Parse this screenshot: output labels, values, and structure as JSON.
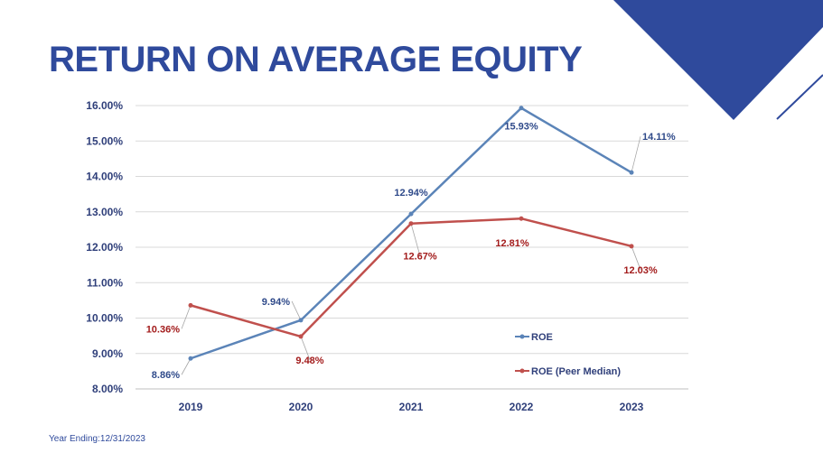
{
  "slide": {
    "title": "RETURN ON AVERAGE EQUITY",
    "footnote": "Year Ending:12/31/2023",
    "colors": {
      "title": "#2f4a9c",
      "accent_triangle": "#2f4a9c"
    }
  },
  "chart_data": {
    "type": "line",
    "title": "",
    "xlabel": "",
    "ylabel": "",
    "categories": [
      "2019",
      "2020",
      "2021",
      "2022",
      "2023"
    ],
    "ylim": [
      8,
      16
    ],
    "yticks": [
      8,
      9,
      10,
      11,
      12,
      13,
      14,
      15,
      16
    ],
    "ytick_labels": [
      "8.00%",
      "9.00%",
      "10.00%",
      "11.00%",
      "12.00%",
      "13.00%",
      "14.00%",
      "15.00%",
      "16.00%"
    ],
    "grid": true,
    "legend_position": "bottom-right",
    "series": [
      {
        "name": "ROE",
        "color": "#5b84b8",
        "label_color": "#2f4a8a",
        "values": [
          8.86,
          9.94,
          12.94,
          15.93,
          14.11
        ],
        "labels": [
          "8.86%",
          "9.94%",
          "12.94%",
          "15.93%",
          "14.11%"
        ]
      },
      {
        "name": "ROE (Peer Median)",
        "color": "#c0504d",
        "label_color": "#a31c1c",
        "values": [
          10.36,
          9.48,
          12.67,
          12.81,
          12.03
        ],
        "labels": [
          "10.36%",
          "9.48%",
          "12.67%",
          "12.81%",
          "12.03%"
        ]
      }
    ]
  }
}
